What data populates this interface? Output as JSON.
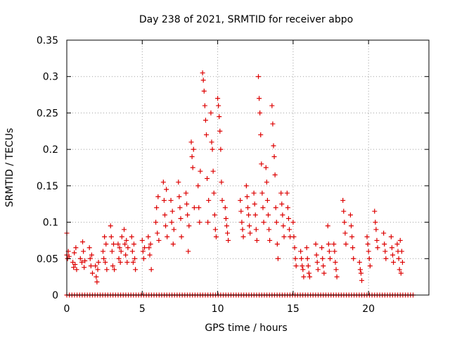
{
  "chart_data": {
    "type": "scatter",
    "title": "Day 238 of 2021, SRMTID for receiver abpo",
    "xlabel": "GPS time / hours",
    "ylabel": "SRMTID / TECUs",
    "xlim": [
      0,
      24
    ],
    "ylim": [
      0,
      0.35
    ],
    "xticks": [
      0,
      5,
      10,
      15,
      20
    ],
    "xtick_labels": [
      "0",
      "5",
      "10",
      "15",
      "20"
    ],
    "yticks": [
      0,
      0.05,
      0.1,
      0.15,
      0.2,
      0.25,
      0.3,
      0.35
    ],
    "ytick_labels": [
      "0",
      "0.05",
      "0.1",
      "0.15",
      "0.2",
      "0.25",
      "0.3",
      "0.35"
    ],
    "grid": true,
    "marker": "+",
    "color": "#dd0000",
    "series": [
      {
        "name": "SRMTID",
        "points": [
          [
            0.0,
            0.085
          ],
          [
            0.0,
            0.055
          ],
          [
            0.05,
            0.05
          ],
          [
            0.1,
            0.06
          ],
          [
            0.15,
            0.053
          ],
          [
            0.4,
            0.045
          ],
          [
            0.45,
            0.038
          ],
          [
            0.5,
            0.058
          ],
          [
            0.55,
            0.042
          ],
          [
            0.6,
            0.065
          ],
          [
            0.65,
            0.035
          ],
          [
            0.9,
            0.05
          ],
          [
            1.0,
            0.045
          ],
          [
            1.05,
            0.073
          ],
          [
            1.1,
            0.06
          ],
          [
            1.15,
            0.038
          ],
          [
            1.2,
            0.047
          ],
          [
            1.5,
            0.065
          ],
          [
            1.55,
            0.05
          ],
          [
            1.6,
            0.04
          ],
          [
            1.65,
            0.055
          ],
          [
            1.7,
            0.03
          ],
          [
            1.9,
            0.04
          ],
          [
            1.95,
            0.025
          ],
          [
            2.0,
            0.018
          ],
          [
            2.05,
            0.035
          ],
          [
            2.1,
            0.045
          ],
          [
            2.4,
            0.06
          ],
          [
            2.45,
            0.05
          ],
          [
            2.5,
            0.08
          ],
          [
            2.55,
            0.045
          ],
          [
            2.6,
            0.07
          ],
          [
            2.65,
            0.035
          ],
          [
            2.9,
            0.095
          ],
          [
            2.95,
            0.08
          ],
          [
            3.0,
            0.06
          ],
          [
            3.05,
            0.04
          ],
          [
            3.1,
            0.07
          ],
          [
            3.15,
            0.035
          ],
          [
            3.4,
            0.07
          ],
          [
            3.45,
            0.05
          ],
          [
            3.5,
            0.065
          ],
          [
            3.55,
            0.045
          ],
          [
            3.6,
            0.06
          ],
          [
            3.65,
            0.08
          ],
          [
            3.8,
            0.09
          ],
          [
            3.85,
            0.07
          ],
          [
            3.9,
            0.055
          ],
          [
            3.95,
            0.075
          ],
          [
            4.0,
            0.045
          ],
          [
            4.05,
            0.065
          ],
          [
            4.3,
            0.08
          ],
          [
            4.35,
            0.06
          ],
          [
            4.4,
            0.045
          ],
          [
            4.45,
            0.07
          ],
          [
            4.5,
            0.05
          ],
          [
            4.55,
            0.035
          ],
          [
            5.0,
            0.075
          ],
          [
            5.05,
            0.06
          ],
          [
            5.1,
            0.05
          ],
          [
            5.15,
            0.065
          ],
          [
            5.4,
            0.08
          ],
          [
            5.45,
            0.065
          ],
          [
            5.5,
            0.055
          ],
          [
            5.55,
            0.07
          ],
          [
            5.6,
            0.035
          ],
          [
            5.9,
            0.1
          ],
          [
            5.95,
            0.12
          ],
          [
            6.0,
            0.085
          ],
          [
            6.05,
            0.135
          ],
          [
            6.1,
            0.075
          ],
          [
            6.4,
            0.155
          ],
          [
            6.45,
            0.13
          ],
          [
            6.5,
            0.11
          ],
          [
            6.55,
            0.095
          ],
          [
            6.6,
            0.145
          ],
          [
            6.65,
            0.08
          ],
          [
            6.9,
            0.13
          ],
          [
            6.95,
            0.1
          ],
          [
            7.0,
            0.115
          ],
          [
            7.05,
            0.07
          ],
          [
            7.1,
            0.09
          ],
          [
            7.4,
            0.155
          ],
          [
            7.45,
            0.135
          ],
          [
            7.5,
            0.12
          ],
          [
            7.55,
            0.105
          ],
          [
            7.6,
            0.08
          ],
          [
            7.9,
            0.14
          ],
          [
            7.95,
            0.125
          ],
          [
            8.0,
            0.11
          ],
          [
            8.05,
            0.06
          ],
          [
            8.1,
            0.095
          ],
          [
            8.25,
            0.21
          ],
          [
            8.3,
            0.19
          ],
          [
            8.35,
            0.175
          ],
          [
            8.4,
            0.2
          ],
          [
            8.45,
            0.12
          ],
          [
            8.7,
            0.15
          ],
          [
            8.75,
            0.12
          ],
          [
            8.8,
            0.1
          ],
          [
            8.85,
            0.17
          ],
          [
            9.0,
            0.305
          ],
          [
            9.05,
            0.295
          ],
          [
            9.1,
            0.28
          ],
          [
            9.15,
            0.26
          ],
          [
            9.2,
            0.24
          ],
          [
            9.25,
            0.22
          ],
          [
            9.3,
            0.16
          ],
          [
            9.35,
            0.1
          ],
          [
            9.4,
            0.13
          ],
          [
            9.55,
            0.25
          ],
          [
            9.6,
            0.21
          ],
          [
            9.65,
            0.2
          ],
          [
            9.7,
            0.17
          ],
          [
            9.75,
            0.14
          ],
          [
            9.8,
            0.11
          ],
          [
            9.85,
            0.09
          ],
          [
            9.9,
            0.08
          ],
          [
            10.0,
            0.27
          ],
          [
            10.05,
            0.26
          ],
          [
            10.1,
            0.245
          ],
          [
            10.15,
            0.225
          ],
          [
            10.2,
            0.2
          ],
          [
            10.25,
            0.155
          ],
          [
            10.3,
            0.13
          ],
          [
            10.5,
            0.12
          ],
          [
            10.55,
            0.105
          ],
          [
            10.6,
            0.095
          ],
          [
            10.65,
            0.085
          ],
          [
            10.7,
            0.075
          ],
          [
            11.5,
            0.13
          ],
          [
            11.55,
            0.115
          ],
          [
            11.6,
            0.1
          ],
          [
            11.65,
            0.09
          ],
          [
            11.7,
            0.08
          ],
          [
            11.9,
            0.15
          ],
          [
            11.95,
            0.135
          ],
          [
            12.0,
            0.12
          ],
          [
            12.05,
            0.11
          ],
          [
            12.1,
            0.095
          ],
          [
            12.15,
            0.085
          ],
          [
            12.4,
            0.14
          ],
          [
            12.45,
            0.125
          ],
          [
            12.5,
            0.11
          ],
          [
            12.55,
            0.09
          ],
          [
            12.6,
            0.075
          ],
          [
            12.7,
            0.3
          ],
          [
            12.75,
            0.27
          ],
          [
            12.8,
            0.25
          ],
          [
            12.85,
            0.22
          ],
          [
            12.9,
            0.18
          ],
          [
            12.95,
            0.14
          ],
          [
            13.0,
            0.12
          ],
          [
            13.05,
            0.1
          ],
          [
            13.2,
            0.175
          ],
          [
            13.25,
            0.155
          ],
          [
            13.3,
            0.13
          ],
          [
            13.35,
            0.11
          ],
          [
            13.4,
            0.09
          ],
          [
            13.45,
            0.075
          ],
          [
            13.6,
            0.26
          ],
          [
            13.65,
            0.235
          ],
          [
            13.7,
            0.205
          ],
          [
            13.75,
            0.19
          ],
          [
            13.8,
            0.165
          ],
          [
            13.85,
            0.12
          ],
          [
            13.9,
            0.1
          ],
          [
            13.95,
            0.07
          ],
          [
            14.0,
            0.05
          ],
          [
            14.2,
            0.14
          ],
          [
            14.25,
            0.125
          ],
          [
            14.3,
            0.11
          ],
          [
            14.35,
            0.095
          ],
          [
            14.4,
            0.08
          ],
          [
            14.6,
            0.14
          ],
          [
            14.65,
            0.12
          ],
          [
            14.7,
            0.105
          ],
          [
            14.75,
            0.09
          ],
          [
            14.8,
            0.08
          ],
          [
            15.0,
            0.1
          ],
          [
            15.05,
            0.08
          ],
          [
            15.1,
            0.065
          ],
          [
            15.15,
            0.05
          ],
          [
            15.2,
            0.04
          ],
          [
            15.5,
            0.06
          ],
          [
            15.55,
            0.05
          ],
          [
            15.6,
            0.04
          ],
          [
            15.65,
            0.035
          ],
          [
            15.7,
            0.025
          ],
          [
            15.9,
            0.065
          ],
          [
            15.95,
            0.05
          ],
          [
            16.0,
            0.04
          ],
          [
            16.05,
            0.03
          ],
          [
            16.1,
            0.025
          ],
          [
            16.5,
            0.07
          ],
          [
            16.55,
            0.055
          ],
          [
            16.6,
            0.045
          ],
          [
            16.65,
            0.035
          ],
          [
            16.9,
            0.065
          ],
          [
            16.95,
            0.05
          ],
          [
            17.0,
            0.04
          ],
          [
            17.05,
            0.03
          ],
          [
            17.3,
            0.095
          ],
          [
            17.35,
            0.07
          ],
          [
            17.4,
            0.06
          ],
          [
            17.45,
            0.05
          ],
          [
            17.7,
            0.07
          ],
          [
            17.75,
            0.06
          ],
          [
            17.8,
            0.045
          ],
          [
            17.85,
            0.035
          ],
          [
            17.9,
            0.025
          ],
          [
            18.3,
            0.13
          ],
          [
            18.35,
            0.115
          ],
          [
            18.4,
            0.1
          ],
          [
            18.45,
            0.085
          ],
          [
            18.5,
            0.07
          ],
          [
            18.8,
            0.11
          ],
          [
            18.85,
            0.095
          ],
          [
            18.9,
            0.08
          ],
          [
            18.95,
            0.065
          ],
          [
            19.0,
            0.05
          ],
          [
            19.4,
            0.045
          ],
          [
            19.45,
            0.035
          ],
          [
            19.5,
            0.03
          ],
          [
            19.55,
            0.02
          ],
          [
            19.9,
            0.08
          ],
          [
            19.95,
            0.07
          ],
          [
            20.0,
            0.06
          ],
          [
            20.05,
            0.05
          ],
          [
            20.1,
            0.04
          ],
          [
            20.4,
            0.115
          ],
          [
            20.45,
            0.1
          ],
          [
            20.5,
            0.09
          ],
          [
            20.55,
            0.075
          ],
          [
            20.6,
            0.065
          ],
          [
            21.0,
            0.085
          ],
          [
            21.05,
            0.07
          ],
          [
            21.1,
            0.06
          ],
          [
            21.15,
            0.05
          ],
          [
            21.5,
            0.08
          ],
          [
            21.55,
            0.065
          ],
          [
            21.6,
            0.055
          ],
          [
            21.65,
            0.045
          ],
          [
            21.9,
            0.07
          ],
          [
            21.95,
            0.06
          ],
          [
            22.0,
            0.05
          ],
          [
            22.05,
            0.035
          ],
          [
            22.1,
            0.075
          ],
          [
            22.15,
            0.03
          ],
          [
            22.2,
            0.06
          ],
          [
            22.25,
            0.045
          ]
        ],
        "zero_points": [
          0.0,
          0.17,
          0.34,
          0.51,
          0.68,
          0.85,
          1.02,
          1.19,
          1.36,
          1.53,
          1.7,
          1.87,
          2.04,
          2.21,
          2.38,
          2.55,
          2.72,
          2.89,
          3.06,
          3.23,
          3.4,
          3.57,
          3.74,
          3.91,
          4.08,
          4.25,
          4.42,
          4.59,
          4.76,
          4.93,
          5.1,
          5.27,
          5.44,
          5.61,
          5.78,
          5.95,
          6.12,
          6.29,
          6.46,
          6.63,
          6.8,
          6.97,
          7.14,
          7.31,
          7.48,
          7.65,
          7.82,
          7.99,
          8.16,
          8.33,
          8.5,
          8.67,
          8.84,
          9.01,
          9.18,
          9.35,
          9.52,
          9.69,
          9.86,
          10.03,
          10.2,
          10.37,
          10.54,
          10.71,
          10.88,
          11.05,
          11.22,
          11.39,
          11.56,
          11.73,
          11.9,
          12.07,
          12.24,
          12.41,
          12.58,
          12.75,
          12.92,
          13.09,
          13.26,
          13.43,
          13.6,
          13.77,
          13.94,
          14.11,
          14.28,
          14.45,
          14.62,
          14.79,
          14.96,
          15.13,
          15.3,
          15.47,
          15.64,
          15.81,
          15.98,
          16.15,
          16.32,
          16.49,
          16.66,
          16.83,
          17.0,
          17.17,
          17.34,
          17.51,
          17.68,
          17.85,
          18.02,
          18.19,
          18.36,
          18.53,
          18.7,
          18.87,
          19.04,
          19.21,
          19.38,
          19.55,
          19.72,
          19.89,
          20.06,
          20.23,
          20.4,
          20.57,
          20.74,
          20.91,
          21.08,
          21.25,
          21.42,
          21.59,
          21.76,
          21.93,
          22.1,
          22.27,
          22.44,
          22.61,
          22.78,
          22.95
        ]
      }
    ]
  }
}
